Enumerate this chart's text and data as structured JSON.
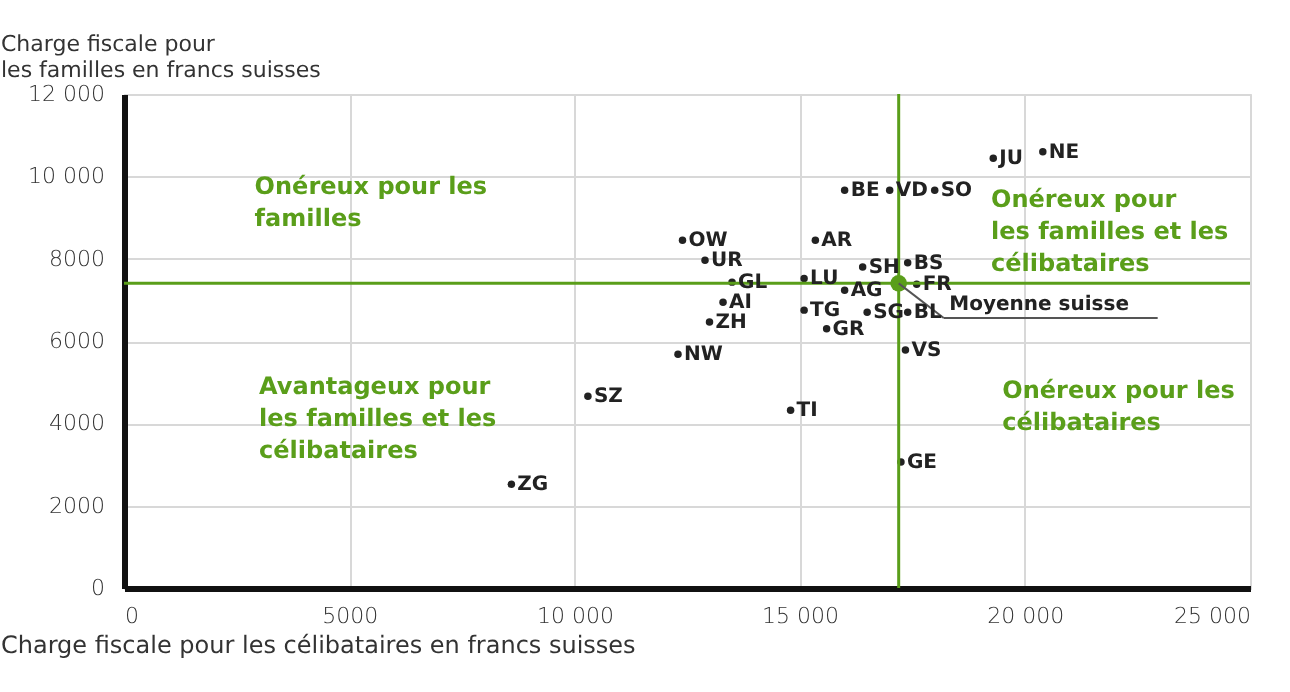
{
  "chart_data": {
    "type": "scatter",
    "xlabel": "Charge fiscale pour les célibataires en francs suisses",
    "ylabel": "Charge fiscale pour les familles en francs suisses",
    "xlim": [
      0,
      25000
    ],
    "ylim": [
      0,
      12000
    ],
    "xticks": [
      0,
      5000,
      {
        "value": 10000,
        "label": "10 000"
      },
      {
        "value": 15000,
        "label": "15 000"
      },
      {
        "value": 20000,
        "label": "20 000"
      },
      {
        "value": 25000,
        "label": "25 000"
      }
    ],
    "yticks": [
      0,
      2000,
      4000,
      6000,
      8000,
      {
        "value": 10000,
        "label": "10 000"
      },
      {
        "value": 12000,
        "label": "12 000"
      }
    ],
    "grid": true,
    "marker": "circle",
    "ref_lines": [
      {
        "axis": "x",
        "value": 17200,
        "color": "#5a9e1a"
      },
      {
        "axis": "y",
        "value": 7400,
        "color": "#5a9e1a"
      }
    ],
    "annotations": [
      "Onéreux pour les familles",
      "Onéreux pour les familles et les célibataires",
      "Avantageux pour les familles et les célibataires",
      "Onéreux pour les célibataires"
    ],
    "series": [
      {
        "name": "JU",
        "color": "#222222",
        "x": [
          19300
        ],
        "values": [
          10440
        ]
      },
      {
        "name": "NE",
        "color": "#222222",
        "x": [
          20400
        ],
        "values": [
          10600
        ]
      },
      {
        "name": "BE",
        "color": "#222222",
        "x": [
          16000
        ],
        "values": [
          9660
        ]
      },
      {
        "name": "VD",
        "color": "#222222",
        "x": [
          17000
        ],
        "values": [
          9660
        ]
      },
      {
        "name": "SO",
        "color": "#222222",
        "x": [
          18000
        ],
        "values": [
          9660
        ]
      },
      {
        "name": "OW",
        "color": "#222222",
        "x": [
          12400
        ],
        "values": [
          8450
        ]
      },
      {
        "name": "UR",
        "color": "#222222",
        "x": [
          12900
        ],
        "values": [
          7960
        ]
      },
      {
        "name": "GL",
        "color": "#222222",
        "x": [
          13500
        ],
        "values": [
          7430
        ]
      },
      {
        "name": "AI",
        "color": "#222222",
        "x": [
          13300
        ],
        "values": [
          6940
        ]
      },
      {
        "name": "ZH",
        "color": "#222222",
        "x": [
          13000
        ],
        "values": [
          6460
        ]
      },
      {
        "name": "NW",
        "color": "#222222",
        "x": [
          12300
        ],
        "values": [
          5680
        ]
      },
      {
        "name": "AR",
        "color": "#222222",
        "x": [
          15350
        ],
        "values": [
          8450
        ]
      },
      {
        "name": "LU",
        "color": "#222222",
        "x": [
          15100
        ],
        "values": [
          7520
        ]
      },
      {
        "name": "TG",
        "color": "#222222",
        "x": [
          15100
        ],
        "values": [
          6750
        ]
      },
      {
        "name": "GR",
        "color": "#222222",
        "x": [
          15600
        ],
        "values": [
          6300
        ]
      },
      {
        "name": "SH",
        "color": "#222222",
        "x": [
          16400
        ],
        "values": [
          7800
        ]
      },
      {
        "name": "AG",
        "color": "#222222",
        "x": [
          16000
        ],
        "values": [
          7230
        ]
      },
      {
        "name": "SG",
        "color": "#222222",
        "x": [
          16500
        ],
        "values": [
          6700
        ]
      },
      {
        "name": "BS",
        "color": "#222222",
        "x": [
          17400
        ],
        "values": [
          7900
        ]
      },
      {
        "name": "BL",
        "color": "#222222",
        "x": [
          17400
        ],
        "values": [
          6700
        ]
      },
      {
        "name": "FR",
        "color": "#222222",
        "x": [
          17600
        ],
        "values": [
          7380
        ]
      },
      {
        "name": "VS",
        "color": "#222222",
        "x": [
          17350
        ],
        "values": [
          5780
        ]
      },
      {
        "name": "GE",
        "color": "#222222",
        "x": [
          17250
        ],
        "values": [
          3060
        ]
      },
      {
        "name": "TI",
        "color": "#222222",
        "x": [
          14800
        ],
        "values": [
          4320
        ]
      },
      {
        "name": "SZ",
        "color": "#222222",
        "x": [
          10300
        ],
        "values": [
          4660
        ]
      },
      {
        "name": "ZG",
        "color": "#222222",
        "x": [
          8600
        ],
        "values": [
          2520
        ]
      },
      {
        "name": "Moyenne suisse",
        "color": "#5a9e1a",
        "x": [
          17200
        ],
        "values": [
          7400
        ]
      }
    ]
  }
}
